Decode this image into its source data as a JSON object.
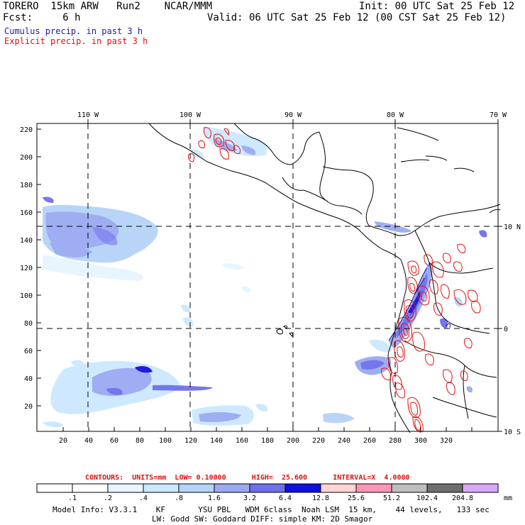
{
  "header": {
    "line1_left": "TORERO  15km ARW   Run2    NCAR/MMM",
    "line1_right": "Init: 00 UTC Sat 25 Feb 12",
    "line2_left": "Fcst:     6 h",
    "line2_right": "Valid: 06 UTC Sat 25 Feb 12 (00 CST Sat 25 Feb 12)",
    "cumulus_label": "Cumulus precip. in past 3 h",
    "explicit_label": "Explicit precip. in past 3 h"
  },
  "map": {
    "top_lon_labels": [
      "110 W",
      "100 W",
      "90 W",
      "80 W",
      "70 W"
    ],
    "right_lat_labels": [
      "10 N",
      "0",
      "10 S"
    ],
    "y_ticks": [
      "20",
      "40",
      "60",
      "80",
      "100",
      "120",
      "140",
      "160",
      "180",
      "200",
      "220"
    ],
    "x_ticks": [
      "20",
      "40",
      "60",
      "80",
      "100",
      "120",
      "140",
      "160",
      "180",
      "200",
      "220",
      "240",
      "260",
      "280",
      "300",
      "320"
    ],
    "colors": {
      "grid": "#000000",
      "coast": "#000000",
      "cumulus_contour": "#1a1aa8",
      "explicit_contour": "#e01010"
    }
  },
  "contours": {
    "text": "CONTOURS:  UNITS=mm  LOW= 0.10000      HIGH=  25.600      INTERVAL=X  4.0000"
  },
  "colorbar": {
    "levels": [
      ".1",
      ".2",
      ".4",
      ".8",
      "1.6",
      "3.2",
      "6.4",
      "12.8",
      "25.6",
      "51.2",
      "102.4",
      "204.8"
    ],
    "unit": "mm",
    "colors": [
      "#ffffff",
      "#ffffff",
      "#e6f5ff",
      "#cce8ff",
      "#b5d3f8",
      "#9aa9f2",
      "#6f6fec",
      "#1010e0",
      "#ffd4d4",
      "#ff96b8",
      "#bebebe",
      "#6e6e6e",
      "#d8a8f8"
    ]
  },
  "footer": {
    "line1": "Model Info: V3.3.1    KF       YSU PBL   WDM 6class  Noah LSM  15 km,    44 levels,   133 sec",
    "line2": "LW: Godd SW: Goddard DIFF: simple KM: 2D Smagor"
  }
}
